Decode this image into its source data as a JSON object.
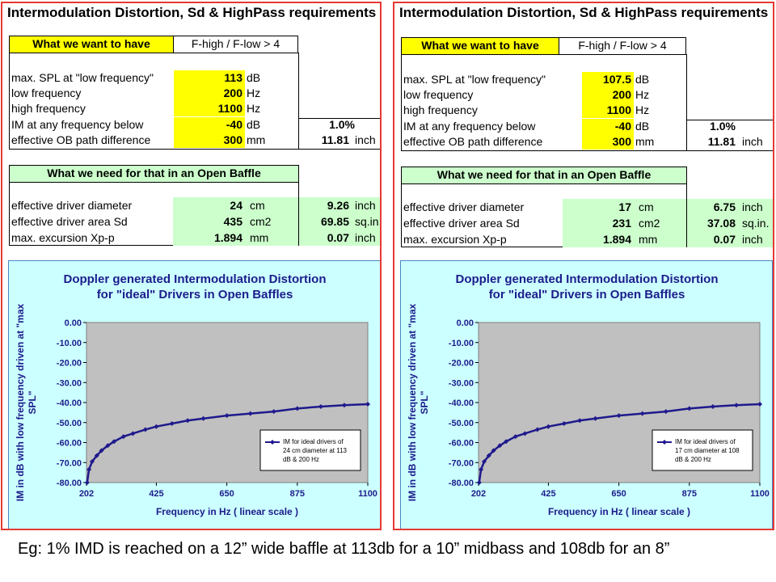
{
  "panels": [
    {
      "title": "Intermodulation Distortion, Sd & HighPass requirements",
      "want_header": "What we want to have",
      "ratio_label": "F-high / F-low > 4",
      "rows": [
        {
          "label": "max. SPL at \"low frequency\"",
          "value": "113",
          "unit": "dB"
        },
        {
          "label": "low frequency",
          "value": "200",
          "unit": "Hz"
        },
        {
          "label": "high frequency",
          "value": "1100",
          "unit": "Hz"
        },
        {
          "label": "IM at any frequency below",
          "value": "-40",
          "unit": "dB",
          "extra": "1.0%"
        },
        {
          "label": "effective OB path difference",
          "value": "300",
          "unit": "mm",
          "extra": "11.81",
          "extra_unit": "inch"
        }
      ],
      "need_header": "What we need for that in an Open Baffle",
      "need_rows": [
        {
          "label": "effective driver diameter",
          "value": "24",
          "unit": "cm",
          "extra": "9.26",
          "extra_unit": "inch"
        },
        {
          "label": "effective driver area Sd",
          "value": "435",
          "unit": "cm2",
          "extra": "69.85",
          "extra_unit": "sq.in."
        },
        {
          "label": "max. excursion Xp-p",
          "value": "1.894",
          "unit": "mm",
          "extra": "0.07",
          "extra_unit": "inch"
        }
      ]
    },
    {
      "title": "Intermodulation Distortion, Sd & HighPass requirements",
      "want_header": "What we want to have",
      "ratio_label": "F-high / F-low > 4",
      "rows": [
        {
          "label": "max. SPL at \"low frequency\"",
          "value": "107.5",
          "unit": "dB"
        },
        {
          "label": "low frequency",
          "value": "200",
          "unit": "Hz"
        },
        {
          "label": "high frequency",
          "value": "1100",
          "unit": "Hz"
        },
        {
          "label": "IM at any frequency below",
          "value": "-40",
          "unit": "dB",
          "extra": "1.0%"
        },
        {
          "label": "effective OB path difference",
          "value": "300",
          "unit": "mm",
          "extra": "11.81",
          "extra_unit": "inch"
        }
      ],
      "need_header": "What we need for that in an Open Baffle",
      "need_rows": [
        {
          "label": "effective driver diameter",
          "value": "17",
          "unit": "cm",
          "extra": "6.75",
          "extra_unit": "inch"
        },
        {
          "label": "effective driver area Sd",
          "value": "231",
          "unit": "cm2",
          "extra": "37.08",
          "extra_unit": "sq.in."
        },
        {
          "label": "max. excursion Xp-p",
          "value": "1.894",
          "unit": "mm",
          "extra": "0.07",
          "extra_unit": "inch"
        }
      ]
    }
  ],
  "chart_data": [
    {
      "type": "line",
      "title": "Doppler generated Intermodulation Distortion for \"ideal\" Drivers in Open Baffles",
      "title_lines": [
        "Doppler generated Intermodulation Distortion",
        "for \"ideal\" Drivers in Open Baffles"
      ],
      "xlabel": "Frequency in Hz ( linear scale )",
      "ylabel": "IM in dB with low frequency driven at \"max SPL\"",
      "ylabel_lines": [
        "IM in dB with low frequency driven at \"max",
        "SPL\""
      ],
      "xlim": [
        202,
        1100
      ],
      "ylim": [
        -80,
        0
      ],
      "x_ticks": [
        "202",
        "425",
        "650",
        "875",
        "1100"
      ],
      "y_ticks": [
        "0.00",
        "-10.00",
        "-20.00",
        "-30.00",
        "-40.00",
        "-50.00",
        "-60.00",
        "-70.00",
        "-80.00"
      ],
      "grid": false,
      "legend_position": "bottom-right",
      "series": [
        {
          "name": "IM for ideal drivers of 24 cm diameter at 113 dB & 200 Hz",
          "legend_lines": [
            "IM for ideal drivers of",
            "24 cm diameter  at 113",
            "dB & 200  Hz"
          ],
          "color": "#1f1a8c",
          "x": [
            204,
            210,
            220,
            235,
            250,
            270,
            290,
            320,
            350,
            390,
            425,
            475,
            525,
            575,
            650,
            725,
            800,
            875,
            950,
            1025,
            1100
          ],
          "y": [
            -80,
            -73.5,
            -69.5,
            -66.5,
            -64,
            -61.5,
            -59.5,
            -57,
            -55.5,
            -53.5,
            -52,
            -50.5,
            -49,
            -48,
            -46.5,
            -45.5,
            -44.5,
            -43,
            -42,
            -41.3,
            -40.8
          ]
        }
      ]
    },
    {
      "type": "line",
      "title": "Doppler generated Intermodulation Distortion for \"ideal\" Drivers in Open Baffles",
      "title_lines": [
        "Doppler generated Intermodulation Distortion",
        "for \"ideal\" Drivers in Open Baffles"
      ],
      "xlabel": "Frequency in Hz ( linear scale )",
      "ylabel": "IM in dB with low frequency driven at \"max SPL\"",
      "ylabel_lines": [
        "IM in dB with low frequency driven at \"max",
        "SPL\""
      ],
      "xlim": [
        202,
        1100
      ],
      "ylim": [
        -80,
        0
      ],
      "x_ticks": [
        "202",
        "425",
        "650",
        "875",
        "1100"
      ],
      "y_ticks": [
        "0.00",
        "-10.00",
        "-20.00",
        "-30.00",
        "-40.00",
        "-50.00",
        "-60.00",
        "-70.00",
        "-80.00"
      ],
      "grid": false,
      "legend_position": "bottom-right",
      "series": [
        {
          "name": "IM for ideal drivers of 17 cm diameter at 108 dB & 200 Hz",
          "legend_lines": [
            "IM for ideal drivers of",
            "17 cm diameter  at 108",
            "dB & 200  Hz"
          ],
          "color": "#1f1a8c",
          "x": [
            204,
            210,
            220,
            235,
            250,
            270,
            290,
            320,
            350,
            390,
            425,
            475,
            525,
            575,
            650,
            725,
            800,
            875,
            950,
            1025,
            1100
          ],
          "y": [
            -80,
            -73.5,
            -69.5,
            -66.5,
            -64,
            -61.5,
            -59.5,
            -57,
            -55.5,
            -53.5,
            -52,
            -50.5,
            -49,
            -48,
            -46.5,
            -45.5,
            -44.5,
            -43,
            -42,
            -41.3,
            -40.8
          ]
        }
      ]
    }
  ],
  "caption": "Eg:  1%  IMD is reached on a 12” wide baffle at 113db for a 10” midbass and 108db for an 8”",
  "colors": {
    "frame": "#e53935",
    "input": "#ffff00",
    "output": "#ccffcc",
    "chart_bg": "#ccffff",
    "plot_bg": "#c0c0c0",
    "series": "#1f1a8c"
  }
}
